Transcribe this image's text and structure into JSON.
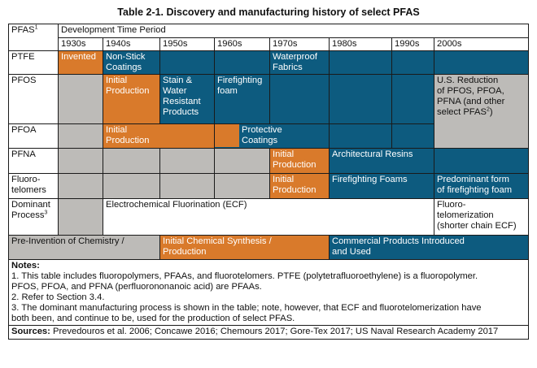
{
  "title": "Table 2-1. Discovery and manufacturing history of select PFAS",
  "header": {
    "pfas_label": "PFAS",
    "pfas_sup": "1",
    "dev_period": "Development Time Period",
    "decades": [
      "1930s",
      "1940s",
      "1950s",
      "1960s",
      "1970s",
      "1980s",
      "1990s",
      "2000s"
    ]
  },
  "rows": {
    "ptfe": {
      "label": "PTFE",
      "c1930": "Invented",
      "c1940": "Non-Stick\nCoatings",
      "c1970": "Waterproof\nFabrics"
    },
    "pfos": {
      "label": "PFOS",
      "c1940": "Initial\nProduction",
      "c1950": "Stain &\nWater\nResistant\nProducts",
      "c1960": "Firefighting\nfoam"
    },
    "us_reduction": {
      "text": "U.S. Reduction\nof PFOS, PFOA,\nPFNA (and other\nselect PFAS",
      "sup": "2",
      "suffix": ")"
    },
    "pfoa": {
      "label": "PFOA",
      "c1940": "Initial\nProduction",
      "c1950": "Protective\nCoatings"
    },
    "pfna": {
      "label": "PFNA",
      "c1970": "Initial\nProduction",
      "c1980": "Architectural Resins"
    },
    "fluorotelomers": {
      "label": "Fluoro-\ntelomers",
      "c1970": "Initial\nProduction",
      "c1980": "Firefighting Foams",
      "c2000": "Predominant form\nof firefighting foam"
    },
    "dominant": {
      "label": "Dominant\nProcess",
      "sup": "3",
      "ecf": "Electrochemical Fluorination (ECF)",
      "c2000": "Fluoro-\ntelomerization\n(shorter chain ECF)"
    }
  },
  "legend": {
    "pre": "Pre-Invention of Chemistry /",
    "initial": "Initial Chemical Synthesis /\nProduction",
    "commercial": "Commercial Products Introduced\nand Used"
  },
  "notes": {
    "heading": "Notes:",
    "n1": "1. This table includes fluoropolymers, PFAAs, and fluorotelomers. PTFE (polytetrafluoroethylene) is a fluoropolymer.\n    PFOS, PFOA, and PFNA (perfluorononanoic acid) are PFAAs.",
    "n2": "2. Refer to Section 3.4.",
    "n3": "3. The dominant manufacturing process is shown in the table; note, however, that ECF and fluorotelomerization have\nboth been, and continue to be, used for the production of select PFAS."
  },
  "sources": {
    "label": "Sources:",
    "text": " Prevedouros et al. 2006; Concawe 2016; Chemours 2017; Gore-Tex 2017; US Naval Research Academy 2017"
  },
  "colors": {
    "orange": "#d97a2b",
    "blue": "#0d5b7f",
    "gray": "#bdbbb8"
  }
}
